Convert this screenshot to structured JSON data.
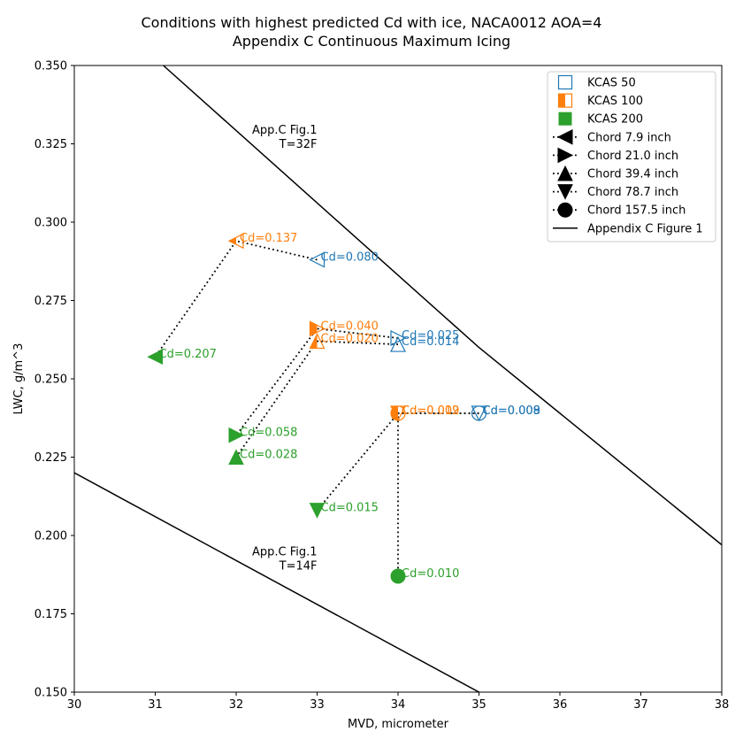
{
  "chart_data": {
    "type": "scatter",
    "title": "Conditions with highest predicted Cd with ice, NACA0012 AOA=4",
    "subtitle": "Appendix C Continuous Maximum Icing",
    "xlabel": "MVD, micrometer",
    "ylabel": "LWC, g/m^3",
    "xlim": [
      30,
      38
    ],
    "ylim": [
      0.15,
      0.35
    ],
    "xticks": [
      30,
      31,
      32,
      33,
      34,
      35,
      36,
      37,
      38
    ],
    "yticks": [
      0.15,
      0.175,
      0.2,
      0.225,
      0.25,
      0.275,
      0.3,
      0.325,
      0.35
    ],
    "ytick_labels": [
      "0.150",
      "0.175",
      "0.200",
      "0.225",
      "0.250",
      "0.275",
      "0.300",
      "0.325",
      "0.350"
    ],
    "grid": false,
    "legend_position": "top-right",
    "colors": {
      "kcas50": "#1f77b4",
      "kcas100": "#ff7f0e",
      "kcas200": "#2ca02c",
      "line": "#000000"
    },
    "legend": [
      {
        "label": "KCAS 50",
        "kind": "kcas",
        "fill": "none",
        "color": "#1f77b4"
      },
      {
        "label": "KCAS 100",
        "kind": "kcas",
        "fill": "left-half",
        "color": "#ff7f0e"
      },
      {
        "label": "KCAS 200",
        "kind": "kcas",
        "fill": "full",
        "color": "#2ca02c"
      },
      {
        "label": "Chord 7.9 inch",
        "kind": "chord",
        "marker": "triangle-left"
      },
      {
        "label": "Chord 21.0 inch",
        "kind": "chord",
        "marker": "triangle-right"
      },
      {
        "label": "Chord 39.4 inch",
        "kind": "chord",
        "marker": "triangle-up"
      },
      {
        "label": "Chord 78.7 inch",
        "kind": "chord",
        "marker": "triangle-down"
      },
      {
        "label": "Chord 157.5 inch",
        "kind": "chord",
        "marker": "circle"
      },
      {
        "label": "Appendix C Figure 1",
        "kind": "line"
      }
    ],
    "envelope_lines": [
      {
        "name": "T=32F",
        "x": [
          31.1,
          35.0,
          38.0
        ],
        "y": [
          0.35,
          0.26,
          0.197
        ]
      },
      {
        "name": "T=14F",
        "x": [
          30.0,
          35.0
        ],
        "y": [
          0.22,
          0.15
        ]
      }
    ],
    "annotations": [
      {
        "lines": [
          "App.C Fig.1",
          "T=32F"
        ],
        "x": 33.0,
        "y": 0.3265
      },
      {
        "lines": [
          "App.C Fig.1",
          "T=14F"
        ],
        "x": 33.0,
        "y": 0.192
      }
    ],
    "series": [
      {
        "name": "Chord 7.9 inch",
        "marker": "triangle-left",
        "points": [
          {
            "x": 33.0,
            "y": 0.288,
            "kcas": 50,
            "label": "Cd=0.080"
          },
          {
            "x": 32.0,
            "y": 0.294,
            "kcas": 100,
            "label": "Cd=0.137"
          },
          {
            "x": 31.0,
            "y": 0.257,
            "kcas": 200,
            "label": "Cd=0.207"
          }
        ]
      },
      {
        "name": "Chord 21.0 inch",
        "marker": "triangle-right",
        "points": [
          {
            "x": 34.0,
            "y": 0.263,
            "kcas": 50,
            "label": "Cd=0.025"
          },
          {
            "x": 33.0,
            "y": 0.266,
            "kcas": 100,
            "label": "Cd=0.040"
          },
          {
            "x": 32.0,
            "y": 0.232,
            "kcas": 200,
            "label": "Cd=0.058"
          }
        ]
      },
      {
        "name": "Chord 39.4 inch",
        "marker": "triangle-up",
        "points": [
          {
            "x": 34.0,
            "y": 0.261,
            "kcas": 50,
            "label": "Cd=0.014"
          },
          {
            "x": 33.0,
            "y": 0.262,
            "kcas": 100,
            "label": "Cd=0.020"
          },
          {
            "x": 32.0,
            "y": 0.225,
            "kcas": 200,
            "label": "Cd=0.028"
          }
        ]
      },
      {
        "name": "Chord 78.7 inch",
        "marker": "triangle-down",
        "points": [
          {
            "x": 35.0,
            "y": 0.239,
            "kcas": 50,
            "label": "Cd=0.009"
          },
          {
            "x": 34.0,
            "y": 0.239,
            "kcas": 100,
            "label": "Cd=0.012"
          },
          {
            "x": 33.0,
            "y": 0.208,
            "kcas": 200,
            "label": "Cd=0.015"
          }
        ]
      },
      {
        "name": "Chord 157.5 inch",
        "marker": "circle",
        "points": [
          {
            "x": 35.0,
            "y": 0.239,
            "kcas": 50,
            "label": "Cd=0.008"
          },
          {
            "x": 34.0,
            "y": 0.239,
            "kcas": 100,
            "label": "Cd=0.009"
          },
          {
            "x": 34.0,
            "y": 0.187,
            "kcas": 200,
            "label": "Cd=0.010"
          }
        ]
      }
    ]
  }
}
